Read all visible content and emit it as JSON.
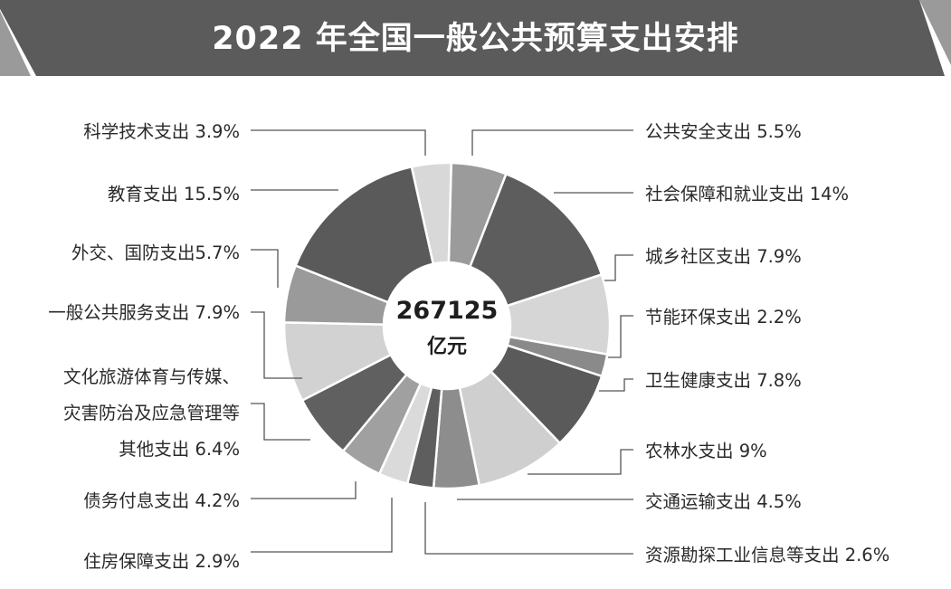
{
  "title": "2022 年全国一般公共预算支出安排",
  "colors": {
    "banner": "#5b5b5b",
    "banner_edge": "#9a9a9a",
    "leader": "#555555"
  },
  "center": {
    "value": "267125",
    "unit": "亿元"
  },
  "chart_data": {
    "type": "pie",
    "variant": "donut",
    "total_label": "267125 亿元",
    "categories": [
      "公共安全支出",
      "社会保障和就业支出",
      "城乡社区支出",
      "节能环保支出",
      "卫生健康支出",
      "农林水支出",
      "交通运输支出",
      "资源勘探工业信息等支出",
      "住房保障支出",
      "债务付息支出",
      "文化旅游体育与传媒、灾害防治及应急管理等其他支出",
      "一般公共服务支出",
      "外交、国防支出",
      "教育支出",
      "科学技术支出"
    ],
    "values": [
      5.5,
      14,
      7.9,
      2.2,
      7.8,
      9,
      4.5,
      2.6,
      2.9,
      4.2,
      6.4,
      7.9,
      5.7,
      15.5,
      3.9
    ],
    "unit": "%",
    "slice_colors": [
      "#9b9b9b",
      "#5d5d5d",
      "#d6d6d6",
      "#8a8a8a",
      "#5a5a5a",
      "#cfcfcf",
      "#8d8d8d",
      "#5e5e5e",
      "#dadada",
      "#a0a0a0",
      "#606060",
      "#d2d2d2",
      "#9a9a9a",
      "#5a5a5a",
      "#d8d8d8"
    ],
    "labels": [
      {
        "lines": [
          "公共安全支出 5.5%"
        ],
        "side": "right"
      },
      {
        "lines": [
          "社会保障和就业支出 14%"
        ],
        "side": "right"
      },
      {
        "lines": [
          "城乡社区支出 7.9%"
        ],
        "side": "right"
      },
      {
        "lines": [
          "节能环保支出 2.2%"
        ],
        "side": "right"
      },
      {
        "lines": [
          "卫生健康支出 7.8%"
        ],
        "side": "right"
      },
      {
        "lines": [
          "农林水支出 9%"
        ],
        "side": "right"
      },
      {
        "lines": [
          "交通运输支出 4.5%"
        ],
        "side": "right"
      },
      {
        "lines": [
          "资源勘探工业信息等支出 2.6%"
        ],
        "side": "right"
      },
      {
        "lines": [
          "住房保障支出 2.9%"
        ],
        "side": "left"
      },
      {
        "lines": [
          "债务付息支出 4.2%"
        ],
        "side": "left"
      },
      {
        "lines": [
          "文化旅游体育与传媒、",
          "灾害防治及应急管理等",
          "其他支出 6.4%"
        ],
        "side": "left"
      },
      {
        "lines": [
          "一般公共服务支出 7.9%"
        ],
        "side": "left"
      },
      {
        "lines": [
          "外交、国防支出5.7%"
        ],
        "side": "left"
      },
      {
        "lines": [
          "教育支出 15.5%"
        ],
        "side": "left"
      },
      {
        "lines": [
          "科学技术支出 3.9%"
        ],
        "side": "left"
      }
    ],
    "legend": "none"
  }
}
